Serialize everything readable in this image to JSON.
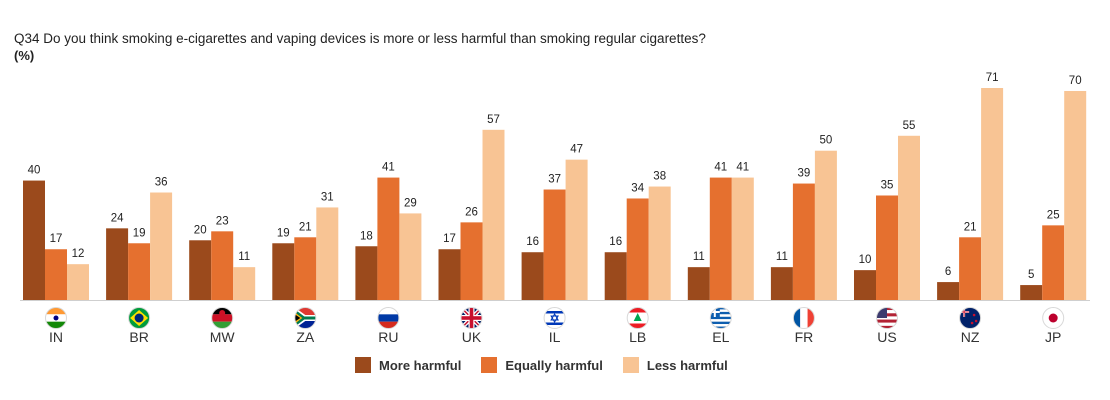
{
  "title": "Q34 Do you think smoking e-cigarettes and vaping devices is more or less harmful than smoking regular cigarettes?",
  "subtitle": "(%)",
  "colors": {
    "more_harmful": "#9B4A1C",
    "equally_harmful": "#E5702F",
    "less_harmful": "#F8C494",
    "axis": "#cfcfcf",
    "label": "#222222"
  },
  "chart_data": {
    "type": "bar",
    "categories": [
      "IN",
      "BR",
      "MW",
      "ZA",
      "RU",
      "UK",
      "IL",
      "LB",
      "EL",
      "FR",
      "US",
      "NZ",
      "JP"
    ],
    "flag_icons": [
      "india-flag-icon",
      "brazil-flag-icon",
      "malawi-flag-icon",
      "south-africa-flag-icon",
      "russia-flag-icon",
      "uk-flag-icon",
      "israel-flag-icon",
      "lebanon-flag-icon",
      "greece-flag-icon",
      "france-flag-icon",
      "usa-flag-icon",
      "new-zealand-flag-icon",
      "japan-flag-icon"
    ],
    "series": [
      {
        "name": "More harmful",
        "values": [
          40,
          24,
          20,
          19,
          18,
          17,
          16,
          16,
          11,
          11,
          10,
          6,
          5
        ]
      },
      {
        "name": "Equally harmful",
        "values": [
          17,
          19,
          23,
          21,
          41,
          26,
          37,
          34,
          41,
          39,
          35,
          21,
          25
        ]
      },
      {
        "name": "Less harmful",
        "values": [
          12,
          36,
          11,
          31,
          29,
          57,
          47,
          38,
          41,
          50,
          55,
          71,
          70
        ]
      }
    ],
    "ylim": [
      0,
      71
    ],
    "grid": false,
    "legend_position": "bottom"
  }
}
